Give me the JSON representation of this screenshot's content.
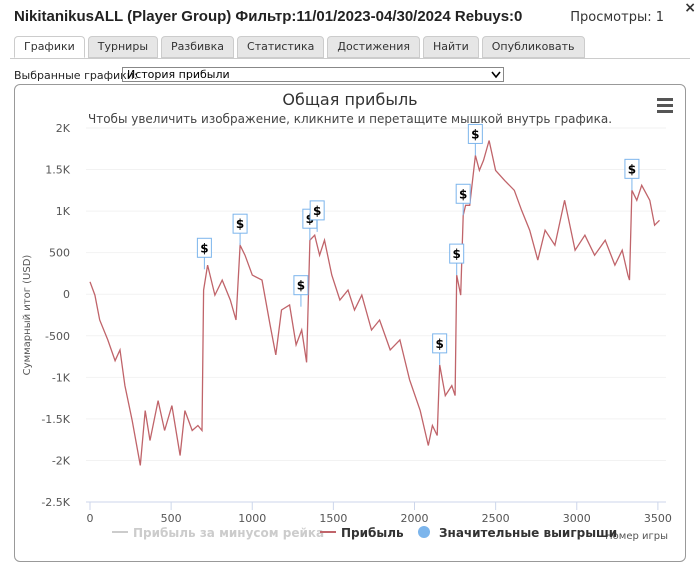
{
  "header": {
    "title": "NikitanikusALL (Player Group) Фильтр:11/01/2023-04/30/2024 Rebuys:0",
    "views": "Просмотры: 1",
    "close": "×"
  },
  "tabs": [
    "Графики",
    "Турниры",
    "Разбивка",
    "Статистика",
    "Достижения",
    "Найти",
    "Опубликовать"
  ],
  "selector": {
    "label": "Выбранные графики:",
    "value": "История прибыли"
  },
  "chart_data": {
    "type": "line",
    "title": "Общая прибыль",
    "subtitle": "Чтобы увеличить изображение, кликните и перетащите мышкой внутрь графика.",
    "y_label": "Суммарный итог (USD)",
    "x_label": "Номер игры",
    "xlim": [
      0,
      3550
    ],
    "xticks": [
      0,
      500,
      1000,
      1500,
      2000,
      2500,
      3000,
      3500
    ],
    "ylim": [
      -2500,
      2000
    ],
    "yticks": [
      {
        "value": -2500,
        "label": "-2.5K"
      },
      {
        "value": -2000,
        "label": "-2K"
      },
      {
        "value": -1500,
        "label": "-1.5K"
      },
      {
        "value": -1000,
        "label": "-1K"
      },
      -500,
      0,
      500,
      {
        "value": 1000,
        "label": "1K"
      },
      {
        "value": 1500,
        "label": "1.5K"
      },
      {
        "value": 2000,
        "label": "2K"
      }
    ],
    "grid": true,
    "series": [
      {
        "name": "Прибыль за минусом рейка",
        "color": "#cccccc",
        "visible": false
      },
      {
        "name": "Прибыль",
        "color": "#c0646a",
        "x": [
          0,
          30,
          60,
          110,
          155,
          185,
          215,
          260,
          310,
          340,
          370,
          420,
          460,
          505,
          555,
          585,
          630,
          665,
          690,
          700,
          725,
          770,
          815,
          865,
          900,
          925,
          955,
          1000,
          1060,
          1110,
          1145,
          1180,
          1230,
          1270,
          1305,
          1335,
          1355,
          1385,
          1415,
          1445,
          1490,
          1540,
          1590,
          1630,
          1675,
          1735,
          1785,
          1850,
          1910,
          1970,
          2035,
          2085,
          2110,
          2140,
          2155,
          2190,
          2230,
          2250,
          2260,
          2285,
          2300,
          2315,
          2340,
          2375,
          2400,
          2425,
          2460,
          2500,
          2555,
          2615,
          2660,
          2710,
          2760,
          2805,
          2865,
          2925,
          2990,
          3050,
          3110,
          3175,
          3235,
          3280,
          3315,
          3325,
          3340,
          3370,
          3400,
          3450,
          3480,
          3510
        ],
        "values": [
          150,
          -10,
          -310,
          -550,
          -800,
          -670,
          -1100,
          -1520,
          -2060,
          -1400,
          -1760,
          -1280,
          -1640,
          -1340,
          -1940,
          -1400,
          -1640,
          -1580,
          -1640,
          50,
          350,
          -10,
          170,
          -70,
          -310,
          590,
          470,
          230,
          170,
          -370,
          -730,
          -190,
          -130,
          -610,
          -430,
          -820,
          650,
          710,
          470,
          650,
          230,
          -70,
          50,
          -190,
          -10,
          -430,
          -310,
          -670,
          -550,
          -1030,
          -1400,
          -1820,
          -1580,
          -1700,
          -850,
          -1220,
          -1100,
          -1220,
          230,
          -10,
          950,
          1070,
          1070,
          1670,
          1490,
          1610,
          1850,
          1490,
          1370,
          1250,
          1010,
          770,
          410,
          770,
          590,
          1130,
          530,
          710,
          470,
          650,
          350,
          530,
          230,
          170,
          1250,
          1130,
          1310,
          1130,
          830,
          890
        ]
      },
      {
        "name": "Значительные выигрыши",
        "color": "#7cb5ec",
        "marker_label": "$",
        "x": [
          705,
          925,
          1300,
          1355,
          1400,
          2155,
          2260,
          2300,
          2375,
          3340
        ],
        "values": [
          300,
          590,
          -150,
          650,
          750,
          -850,
          230,
          950,
          1670,
          1250
        ]
      }
    ]
  }
}
